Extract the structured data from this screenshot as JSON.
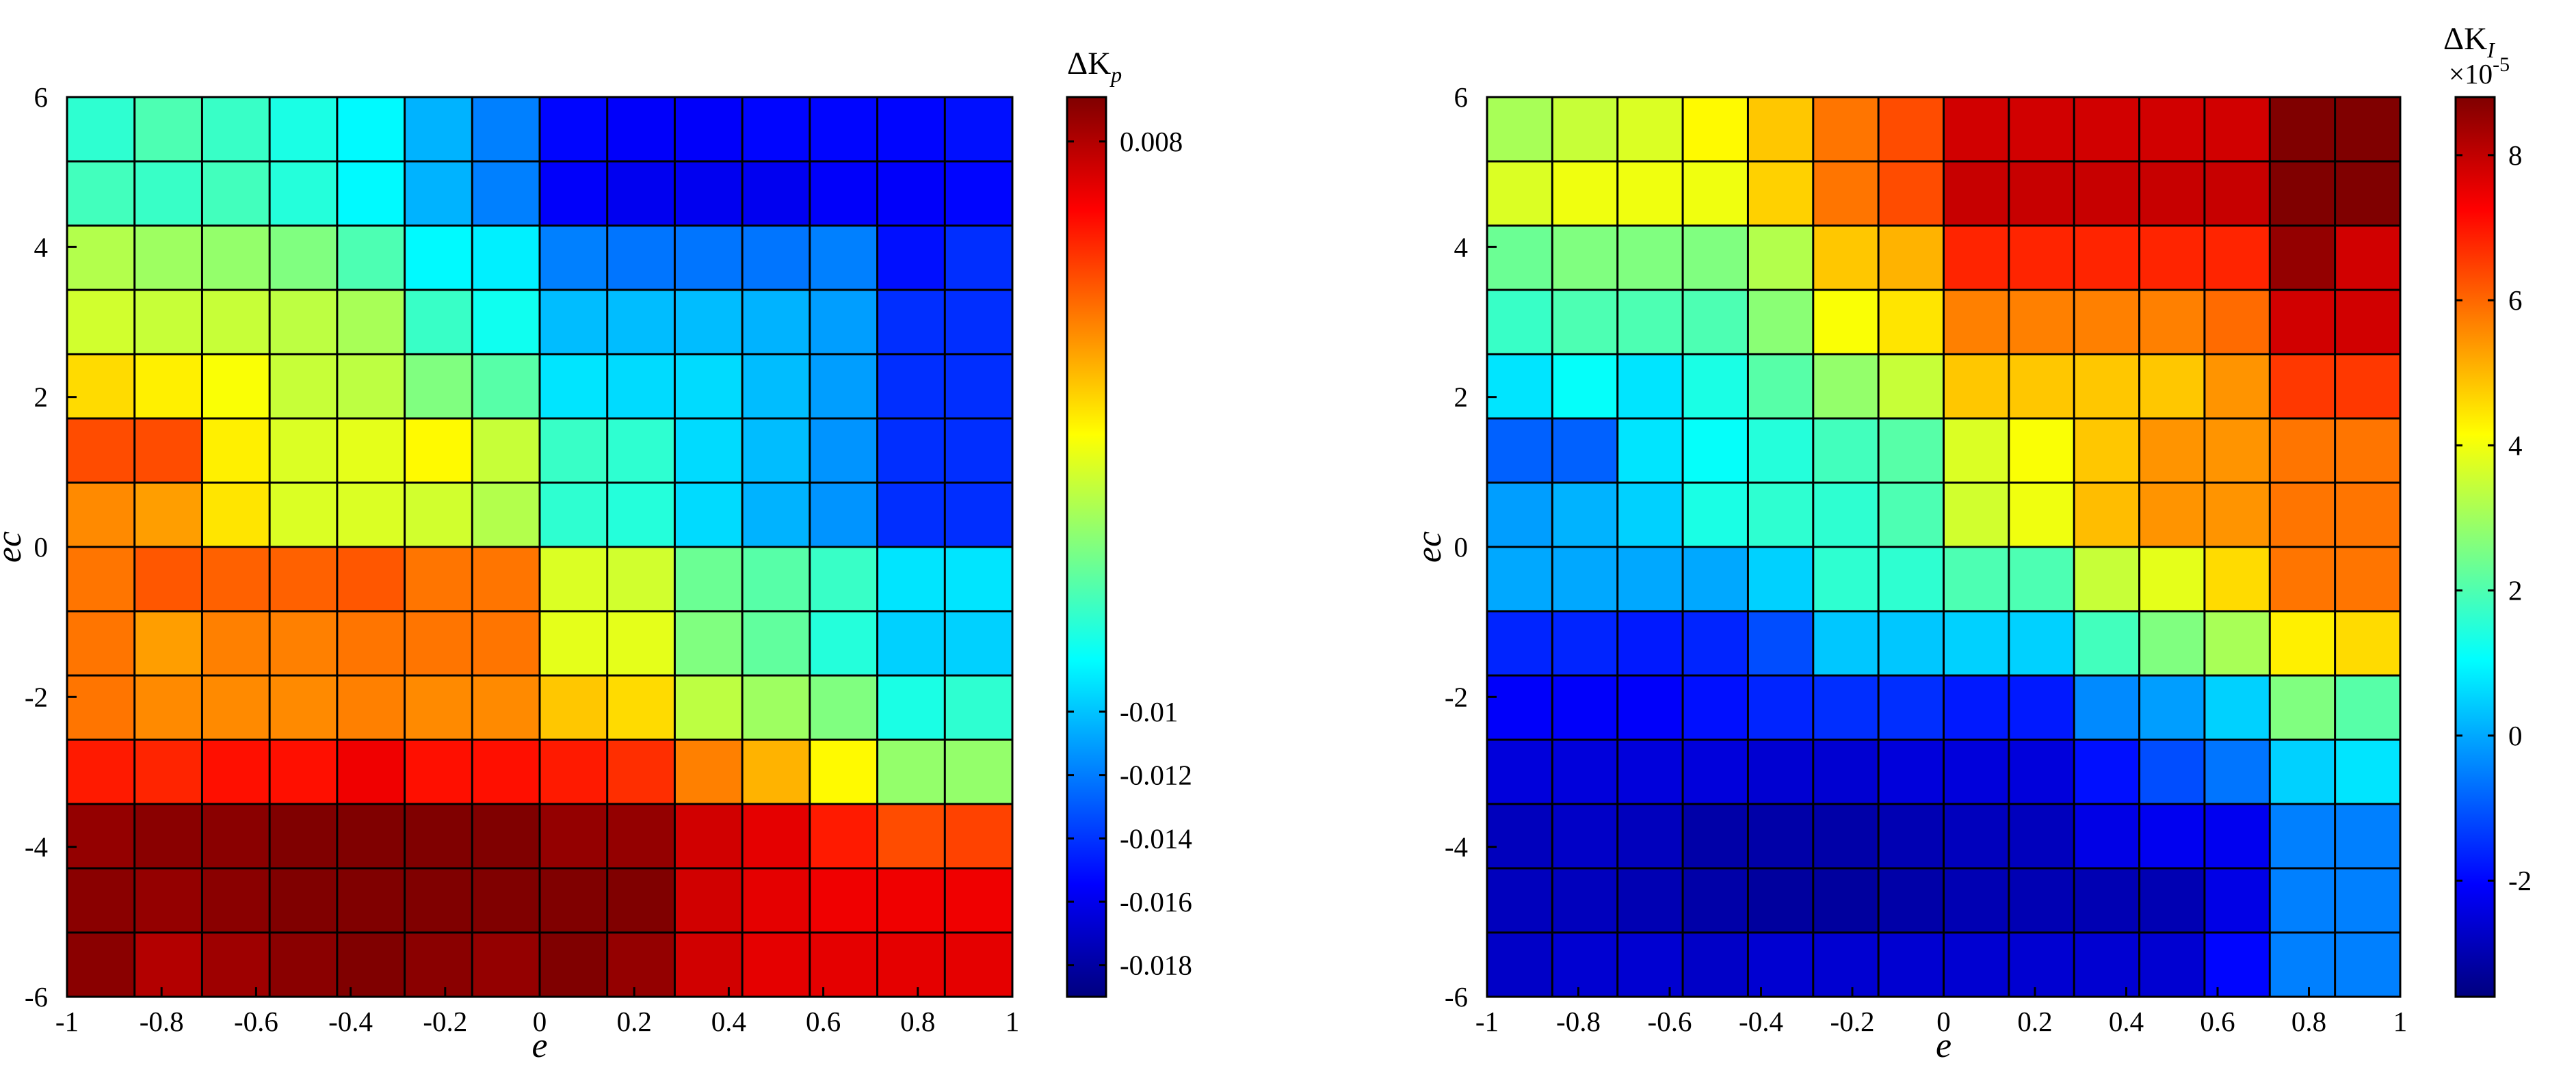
{
  "chart_data": [
    {
      "type": "heatmap",
      "title": "",
      "xlabel": "e",
      "ylabel": "ec",
      "xlim": [
        -1,
        1
      ],
      "ylim": [
        -6,
        6
      ],
      "x_ticks": [
        "-1",
        "-0.8",
        "-0.6",
        "-0.4",
        "-0.2",
        "0",
        "0.2",
        "0.4",
        "0.6",
        "0.8",
        "1"
      ],
      "y_ticks": [
        "6",
        "4",
        "2",
        "0",
        "-2",
        "-4",
        "-6"
      ],
      "colorbar": {
        "label": "ΔK",
        "label_sub": "p",
        "exponent": "",
        "range": [
          -0.019,
          0.0094
        ],
        "ticks": [
          "0.008",
          "-0.01",
          "-0.012",
          "-0.014",
          "-0.016",
          "-0.018"
        ],
        "colormap": "jet"
      },
      "grid": true,
      "rows_from_top": true,
      "values": [
        [
          0.42,
          0.45,
          0.43,
          0.4,
          0.37,
          0.3,
          0.25,
          0.13,
          0.12,
          0.12,
          0.13,
          0.13,
          0.13,
          0.14
        ],
        [
          0.44,
          0.43,
          0.44,
          0.41,
          0.37,
          0.3,
          0.25,
          0.12,
          0.11,
          0.11,
          0.11,
          0.12,
          0.12,
          0.13
        ],
        [
          0.55,
          0.53,
          0.52,
          0.5,
          0.45,
          0.37,
          0.36,
          0.25,
          0.24,
          0.24,
          0.24,
          0.25,
          0.14,
          0.17
        ],
        [
          0.58,
          0.57,
          0.57,
          0.56,
          0.54,
          0.43,
          0.39,
          0.31,
          0.31,
          0.31,
          0.3,
          0.28,
          0.17,
          0.17
        ],
        [
          0.66,
          0.64,
          0.62,
          0.57,
          0.56,
          0.5,
          0.46,
          0.35,
          0.34,
          0.34,
          0.31,
          0.28,
          0.17,
          0.17
        ],
        [
          0.8,
          0.8,
          0.64,
          0.59,
          0.6,
          0.63,
          0.57,
          0.43,
          0.42,
          0.34,
          0.31,
          0.27,
          0.17,
          0.17
        ],
        [
          0.74,
          0.72,
          0.65,
          0.59,
          0.59,
          0.58,
          0.55,
          0.42,
          0.41,
          0.34,
          0.3,
          0.27,
          0.17,
          0.17
        ],
        [
          0.76,
          0.79,
          0.78,
          0.78,
          0.79,
          0.76,
          0.76,
          0.59,
          0.58,
          0.48,
          0.46,
          0.43,
          0.35,
          0.35
        ],
        [
          0.76,
          0.72,
          0.75,
          0.75,
          0.76,
          0.76,
          0.76,
          0.6,
          0.6,
          0.5,
          0.47,
          0.41,
          0.33,
          0.33
        ],
        [
          0.76,
          0.74,
          0.74,
          0.74,
          0.75,
          0.74,
          0.74,
          0.68,
          0.66,
          0.56,
          0.53,
          0.5,
          0.4,
          0.42
        ],
        [
          0.85,
          0.84,
          0.86,
          0.86,
          0.89,
          0.86,
          0.86,
          0.85,
          0.83,
          0.75,
          0.7,
          0.63,
          0.52,
          0.52
        ],
        [
          0.98,
          0.99,
          0.99,
          1.02,
          1.02,
          1.02,
          1.0,
          0.98,
          0.98,
          0.92,
          0.9,
          0.85,
          0.8,
          0.81
        ],
        [
          0.99,
          0.98,
          0.99,
          1.02,
          1.02,
          1.02,
          1.02,
          1.03,
          1.03,
          0.92,
          0.9,
          0.89,
          0.89,
          0.89
        ],
        [
          0.99,
          0.95,
          0.97,
          0.99,
          1.01,
          0.99,
          0.98,
          1.01,
          0.98,
          0.92,
          0.9,
          0.9,
          0.9,
          0.9
        ]
      ]
    },
    {
      "type": "heatmap",
      "title": "",
      "xlabel": "e",
      "ylabel": "ec",
      "xlim": [
        -1,
        1
      ],
      "ylim": [
        -6,
        6
      ],
      "x_ticks": [
        "-1",
        "-0.8",
        "-0.6",
        "-0.4",
        "-0.2",
        "0",
        "0.2",
        "0.4",
        "0.6",
        "0.8",
        "1"
      ],
      "y_ticks": [
        "6",
        "4",
        "2",
        "0",
        "-2",
        "-4",
        "-6"
      ],
      "colorbar": {
        "label": "ΔK",
        "label_sub": "I",
        "exponent": "×10-5",
        "range": [
          -3.6,
          8.8
        ],
        "ticks": [
          "8",
          "6",
          "4",
          "2",
          "0",
          "-2"
        ],
        "colormap": "jet"
      },
      "grid": true,
      "rows_from_top": true,
      "values": [
        [
          0.54,
          0.57,
          0.59,
          0.63,
          0.68,
          0.76,
          0.8,
          0.92,
          0.92,
          0.92,
          0.92,
          0.92,
          1.06,
          1.02
        ],
        [
          0.59,
          0.61,
          0.61,
          0.61,
          0.67,
          0.76,
          0.8,
          0.93,
          0.93,
          0.93,
          0.93,
          0.93,
          1.07,
          1.03
        ],
        [
          0.48,
          0.5,
          0.5,
          0.5,
          0.55,
          0.68,
          0.7,
          0.84,
          0.84,
          0.84,
          0.84,
          0.84,
          0.98,
          0.92
        ],
        [
          0.43,
          0.45,
          0.45,
          0.45,
          0.51,
          0.62,
          0.65,
          0.75,
          0.75,
          0.75,
          0.75,
          0.77,
          0.92,
          0.92
        ],
        [
          0.35,
          0.38,
          0.35,
          0.4,
          0.46,
          0.52,
          0.57,
          0.68,
          0.68,
          0.68,
          0.68,
          0.73,
          0.82,
          0.82
        ],
        [
          0.22,
          0.22,
          0.35,
          0.38,
          0.41,
          0.44,
          0.46,
          0.59,
          0.62,
          0.68,
          0.73,
          0.73,
          0.76,
          0.76
        ],
        [
          0.28,
          0.3,
          0.33,
          0.4,
          0.42,
          0.42,
          0.45,
          0.58,
          0.61,
          0.69,
          0.73,
          0.73,
          0.76,
          0.76
        ],
        [
          0.29,
          0.29,
          0.29,
          0.29,
          0.33,
          0.42,
          0.42,
          0.45,
          0.45,
          0.57,
          0.6,
          0.66,
          0.76,
          0.76
        ],
        [
          0.16,
          0.16,
          0.15,
          0.16,
          0.2,
          0.32,
          0.32,
          0.33,
          0.33,
          0.44,
          0.5,
          0.54,
          0.64,
          0.66
        ],
        [
          0.12,
          0.12,
          0.12,
          0.14,
          0.16,
          0.17,
          0.17,
          0.15,
          0.15,
          0.26,
          0.28,
          0.33,
          0.5,
          0.46
        ],
        [
          0.09,
          0.09,
          0.09,
          0.09,
          0.08,
          0.08,
          0.09,
          0.09,
          0.09,
          0.14,
          0.2,
          0.24,
          0.33,
          0.35
        ],
        [
          0.06,
          0.07,
          0.06,
          0.04,
          0.04,
          0.04,
          0.05,
          0.06,
          0.06,
          0.1,
          0.11,
          0.11,
          0.25,
          0.25
        ],
        [
          0.06,
          0.06,
          0.05,
          0.04,
          0.03,
          0.03,
          0.04,
          0.05,
          0.05,
          0.05,
          0.05,
          0.1,
          0.25,
          0.25
        ],
        [
          0.07,
          0.08,
          0.08,
          0.07,
          0.08,
          0.08,
          0.08,
          0.08,
          0.08,
          0.08,
          0.08,
          0.13,
          0.25,
          0.25
        ]
      ]
    }
  ]
}
